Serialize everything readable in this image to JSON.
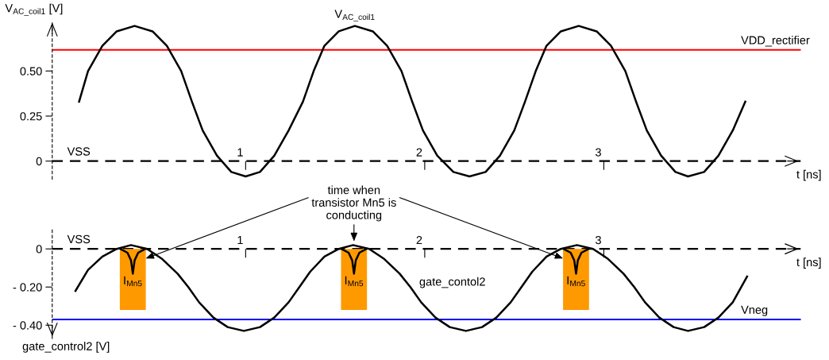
{
  "chart_data": [
    {
      "type": "line",
      "ylabel": "V$_{AC_coil1}$ [V]",
      "xlabel": "t [ns]",
      "xlim": [
        -0.08,
        4.1
      ],
      "ylim": [
        -0.1,
        0.78
      ],
      "xticks": [
        1,
        2,
        3
      ],
      "yticks": [
        0,
        {
          "value": 0.25,
          "label": "0.25"
        },
        {
          "value": 0.5,
          "label": "0.50"
        }
      ],
      "x": [
        0.07,
        0.12,
        0.2,
        0.28,
        0.38,
        0.48,
        0.56,
        0.64,
        0.7,
        0.76,
        0.84,
        0.92,
        1.0,
        1.08,
        1.16,
        1.24,
        1.32,
        1.38,
        1.44,
        1.52,
        1.61,
        1.71,
        1.79,
        1.87,
        1.93,
        1.99,
        2.07,
        2.16,
        2.25,
        2.34,
        2.42,
        2.5,
        2.56,
        2.62,
        2.68,
        2.76,
        2.86,
        2.96,
        3.04,
        3.12,
        3.18,
        3.24,
        3.32,
        3.4,
        3.47,
        3.56,
        3.64,
        3.72,
        3.79
      ],
      "series": [
        {
          "color": "#000000",
          "values": [
            0.33,
            0.5,
            0.64,
            0.72,
            0.75,
            0.72,
            0.64,
            0.5,
            0.33,
            0.17,
            0.03,
            -0.06,
            -0.085,
            -0.06,
            0.03,
            0.17,
            0.33,
            0.5,
            0.64,
            0.72,
            0.75,
            0.72,
            0.64,
            0.5,
            0.33,
            0.17,
            0.03,
            -0.06,
            -0.085,
            -0.06,
            0.03,
            0.17,
            0.33,
            0.5,
            0.64,
            0.72,
            0.75,
            0.72,
            0.64,
            0.5,
            0.33,
            0.17,
            0.03,
            -0.06,
            -0.085,
            -0.06,
            0.03,
            0.17,
            0.33
          ]
        }
      ],
      "ref_lines": [
        {
          "axis": "y",
          "value": 0,
          "label": "VSS",
          "color": "#000000",
          "line_style": "dashed"
        },
        {
          "axis": "y",
          "value": 0.617,
          "label": "VDD_rectifier",
          "color": "#ff0000",
          "line_style": "solid"
        }
      ],
      "annotations": [
        {
          "text": "V$_{AC_coil1}$",
          "x": 1.61,
          "y": 0.75
        }
      ]
    },
    {
      "type": "line",
      "ylabel": "gate_control2 [V]",
      "xlabel": "t [ns]",
      "xlim": [
        -0.08,
        4.1
      ],
      "ylim": [
        -0.47,
        0.1
      ],
      "xticks": [
        1,
        2,
        3
      ],
      "yticks": [
        0,
        {
          "value": -0.2,
          "label": "- 0.20"
        },
        {
          "value": -0.4,
          "label": "- 0.40"
        }
      ],
      "series": [
        {
          "type": "bar",
          "color": "#ff9900",
          "x": [
            0.37,
            1.605,
            2.845
          ],
          "values": [
            -0.32,
            -0.32,
            -0.32
          ]
        },
        {
          "color": "#000000",
          "x": [
            0.05,
            0.12,
            0.2,
            0.28,
            0.36,
            0.45,
            0.53,
            0.62,
            0.68,
            0.74,
            0.82,
            0.9,
            0.99,
            1.08,
            1.16,
            1.24,
            1.3,
            1.36,
            1.44,
            1.52,
            1.6,
            1.69,
            1.77,
            1.86,
            1.92,
            1.98,
            2.06,
            2.14,
            2.23,
            2.32,
            2.4,
            2.48,
            2.54,
            2.6,
            2.68,
            2.76,
            2.85,
            2.94,
            3.02,
            3.11,
            3.17,
            3.23,
            3.31,
            3.39,
            3.47,
            3.56,
            3.64,
            3.72,
            3.8
          ],
          "values": [
            -0.22,
            -0.11,
            -0.04,
            0.0,
            0.02,
            0.0,
            -0.05,
            -0.13,
            -0.2,
            -0.28,
            -0.36,
            -0.41,
            -0.43,
            -0.41,
            -0.36,
            -0.28,
            -0.2,
            -0.12,
            -0.04,
            0.0,
            0.02,
            0.0,
            -0.05,
            -0.13,
            -0.2,
            -0.28,
            -0.36,
            -0.41,
            -0.43,
            -0.41,
            -0.36,
            -0.28,
            -0.2,
            -0.12,
            -0.04,
            0.0,
            0.02,
            0.0,
            -0.05,
            -0.13,
            -0.2,
            -0.28,
            -0.36,
            -0.41,
            -0.43,
            -0.41,
            -0.36,
            -0.28,
            -0.145
          ]
        },
        {
          "color": "#000000",
          "x": [
            0.3,
            0.34,
            0.36,
            0.37,
            0.38,
            0.4,
            0.44,
            null,
            1.535,
            1.575,
            1.595,
            1.605,
            1.615,
            1.635,
            1.675,
            null,
            2.775,
            2.815,
            2.835,
            2.845,
            2.855,
            2.875,
            2.915
          ],
          "values": [
            0,
            -0.02,
            -0.06,
            -0.13,
            -0.06,
            -0.02,
            0,
            null,
            0,
            -0.02,
            -0.06,
            -0.13,
            -0.06,
            -0.02,
            0,
            null,
            0,
            -0.02,
            -0.06,
            -0.13,
            -0.06,
            -0.02,
            0
          ]
        }
      ],
      "ref_lines": [
        {
          "axis": "y",
          "value": 0,
          "label": "VSS",
          "color": "#000000",
          "line_style": "dashed"
        },
        {
          "axis": "y",
          "value": -0.37,
          "label": "Vneg",
          "color": "#0000ff",
          "line_style": "solid"
        }
      ],
      "annotations": [
        {
          "text": "I$_{Mn5}$",
          "x": 0.37,
          "y": -0.13
        },
        {
          "text": "I$_{Mn5}$",
          "x": 1.605,
          "y": -0.13
        },
        {
          "text": "I$_{Mn5}$",
          "x": 2.845,
          "y": -0.13
        },
        {
          "text": "gate_contol2",
          "x": 1.92,
          "y": -0.2
        },
        {
          "text": "time when\ntransistor Mn5 is\nconducting",
          "x": 1.605,
          "y": 0.04
        }
      ]
    }
  ]
}
